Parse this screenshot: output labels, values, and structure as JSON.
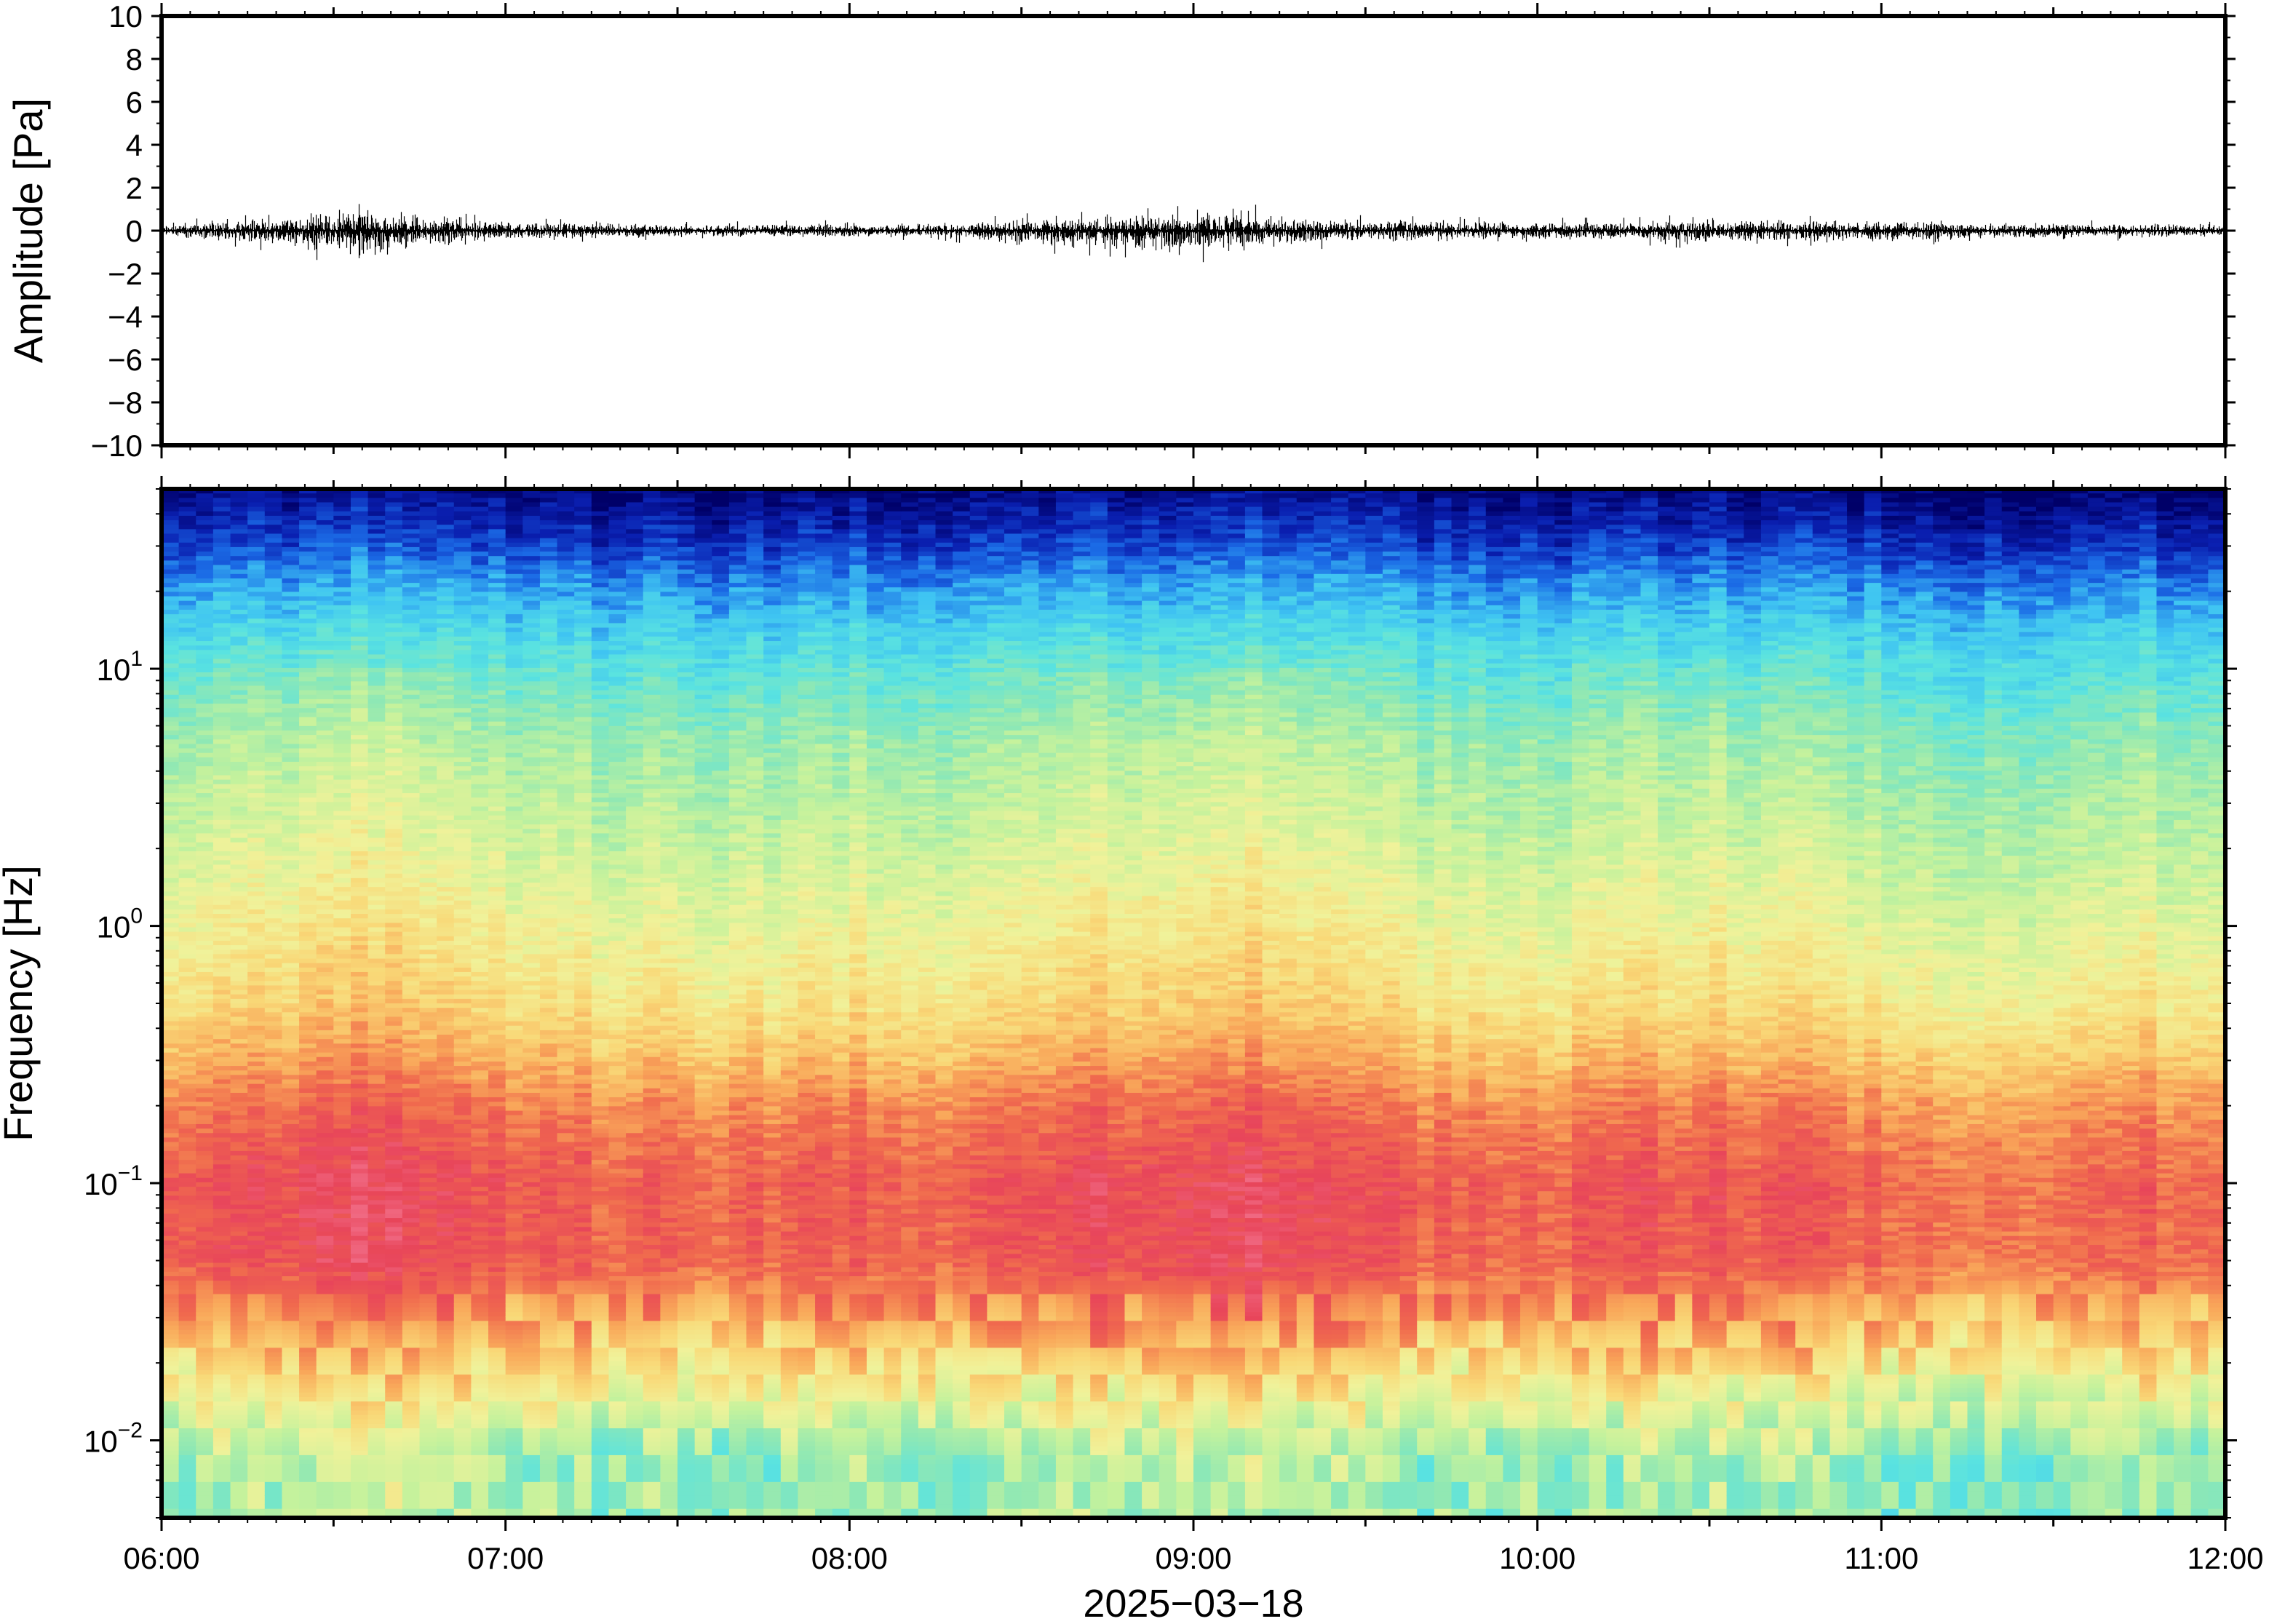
{
  "chart_data": [
    {
      "type": "line",
      "name": "waveform",
      "ylabel": "Amplitude [Pa]",
      "xlabel": "",
      "ylim": [
        -10,
        10
      ],
      "yticks": [
        10,
        8,
        6,
        4,
        2,
        0,
        -2,
        -4,
        -6,
        -8,
        -10
      ],
      "ytick_labels": [
        "10",
        "8",
        "6",
        "4",
        "2",
        "0",
        "−2",
        "−4",
        "−6",
        "−8",
        "−10"
      ],
      "x_range": [
        "06:00",
        "12:00"
      ],
      "line_color": "#000000",
      "envelope": {
        "time": [
          "06:00",
          "06:15",
          "06:30",
          "06:35",
          "06:40",
          "06:45",
          "07:00",
          "07:30",
          "08:00",
          "08:15",
          "08:30",
          "08:45",
          "09:00",
          "09:05",
          "09:15",
          "09:30",
          "10:00",
          "10:15",
          "10:30",
          "10:45",
          "11:00",
          "11:30",
          "12:00"
        ],
        "peak_amplitude": [
          0.4,
          0.8,
          1.2,
          1.5,
          1.3,
          1.0,
          0.6,
          0.4,
          0.5,
          0.4,
          0.8,
          0.9,
          1.2,
          1.5,
          1.0,
          0.7,
          0.6,
          0.6,
          0.8,
          0.7,
          0.6,
          0.5,
          0.4
        ],
        "min_amplitude": [
          -0.4,
          -0.8,
          -1.5,
          -2.4,
          -1.4,
          -1.0,
          -0.6,
          -0.4,
          -0.5,
          -0.4,
          -1.0,
          -1.2,
          -1.4,
          -1.6,
          -1.0,
          -0.7,
          -0.6,
          -0.6,
          -0.9,
          -0.7,
          -0.7,
          -0.5,
          -0.4
        ]
      }
    },
    {
      "type": "heatmap",
      "name": "spectrogram",
      "ylabel": "Frequency [Hz]",
      "xlabel": "2025−03−18",
      "y_scale": "log",
      "ylim_hz": [
        0.005,
        50
      ],
      "yticks_hz": [
        10,
        1,
        0.1,
        0.01
      ],
      "ytick_labels": [
        {
          "base": "10",
          "exp": "1"
        },
        {
          "base": "10",
          "exp": "0"
        },
        {
          "base": "10",
          "exp": "−1"
        },
        {
          "base": "10",
          "exp": "−2"
        }
      ],
      "xtick_labels": [
        "06:00",
        "07:00",
        "08:00",
        "09:00",
        "10:00",
        "11:00",
        "12:00"
      ],
      "colormap": [
        "#000068",
        "#0a1fb0",
        "#1b6be6",
        "#3fc4f2",
        "#5ae3e0",
        "#8fe8b4",
        "#c6f29c",
        "#f0f29a",
        "#f9d877",
        "#f9a85a",
        "#f06a4e",
        "#e8455a",
        "#f2708a"
      ],
      "profile": {
        "freq_hz": [
          0.005,
          0.008,
          0.012,
          0.02,
          0.03,
          0.05,
          0.1,
          0.2,
          0.3,
          0.5,
          1,
          2,
          5,
          10,
          20,
          30,
          50
        ],
        "level": [
          0.44,
          0.44,
          0.52,
          0.66,
          0.76,
          0.86,
          0.87,
          0.8,
          0.72,
          0.64,
          0.58,
          0.52,
          0.45,
          0.35,
          0.22,
          0.12,
          0.02
        ]
      },
      "column_boost": {
        "time": [
          "06:00",
          "06:15",
          "06:30",
          "06:40",
          "06:50",
          "07:00",
          "07:30",
          "08:00",
          "08:20",
          "08:40",
          "09:00",
          "09:10",
          "09:20",
          "09:40",
          "10:00",
          "10:20",
          "10:40",
          "11:00",
          "11:20",
          "11:40",
          "12:00"
        ],
        "value": [
          0.0,
          0.02,
          0.06,
          0.07,
          0.03,
          0.01,
          -0.02,
          0.0,
          -0.01,
          0.03,
          0.06,
          0.07,
          0.03,
          -0.01,
          -0.02,
          0.02,
          0.01,
          -0.03,
          -0.05,
          -0.02,
          -0.01
        ]
      }
    }
  ]
}
